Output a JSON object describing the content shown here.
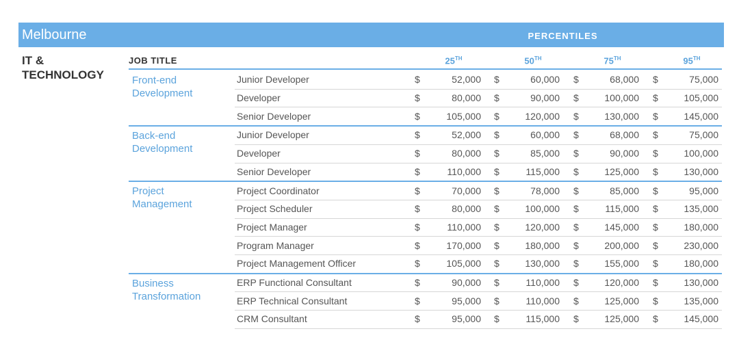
{
  "header": {
    "city": "Melbourne",
    "band": "PERCENTILES"
  },
  "sector": "IT & TECHNOLOGY",
  "table": {
    "job_title_header": "JOB TITLE",
    "currency": "$",
    "percentiles": [
      {
        "number": "25",
        "suffix": "TH"
      },
      {
        "number": "50",
        "suffix": "TH"
      },
      {
        "number": "75",
        "suffix": "TH"
      },
      {
        "number": "95",
        "suffix": "TH"
      }
    ],
    "groups": [
      {
        "name": "Front-end Development",
        "rows": [
          [
            "Junior Developer",
            "52,000",
            "60,000",
            "68,000",
            "75,000"
          ],
          [
            "Developer",
            "80,000",
            "90,000",
            "100,000",
            "105,000"
          ],
          [
            "Senior Developer",
            "105,000",
            "120,000",
            "130,000",
            "145,000"
          ]
        ]
      },
      {
        "name": "Back-end Development",
        "rows": [
          [
            "Junior Developer",
            "52,000",
            "60,000",
            "68,000",
            "75,000"
          ],
          [
            "Developer",
            "80,000",
            "85,000",
            "90,000",
            "100,000"
          ],
          [
            "Senior Developer",
            "110,000",
            "115,000",
            "125,000",
            "130,000"
          ]
        ]
      },
      {
        "name": "Project Management",
        "rows": [
          [
            "Project Coordinator",
            "70,000",
            "78,000",
            "85,000",
            "95,000"
          ],
          [
            "Project Scheduler",
            "80,000",
            "100,000",
            "115,000",
            "135,000"
          ],
          [
            "Project Manager",
            "110,000",
            "120,000",
            "145,000",
            "180,000"
          ],
          [
            "Program Manager",
            "170,000",
            "180,000",
            "200,000",
            "230,000"
          ],
          [
            "Project Management Officer",
            "105,000",
            "130,000",
            "155,000",
            "180,000"
          ]
        ]
      },
      {
        "name": "Business Transformation",
        "rows": [
          [
            "ERP Functional Consultant",
            "90,000",
            "110,000",
            "120,000",
            "130,000"
          ],
          [
            "ERP Technical Consultant",
            "95,000",
            "110,000",
            "125,000",
            "135,000"
          ],
          [
            "CRM Consultant",
            "95,000",
            "115,000",
            "125,000",
            "145,000"
          ]
        ]
      }
    ]
  }
}
